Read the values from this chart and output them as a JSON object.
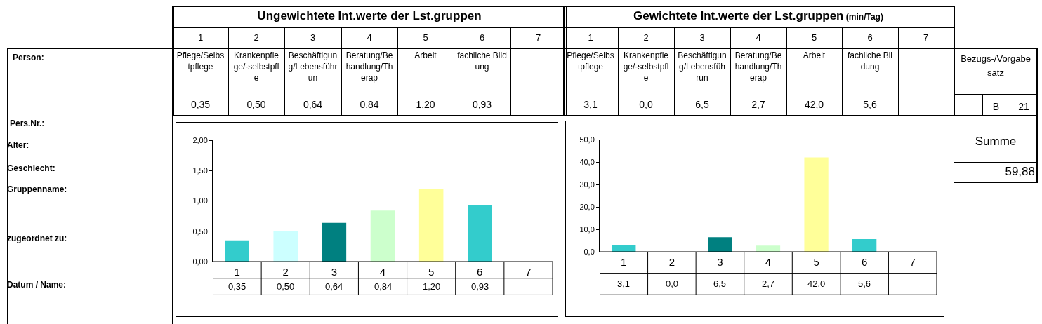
{
  "chart_data": [
    {
      "type": "bar",
      "title": "Ungewichtete Int.werte der Lst.gruppen",
      "categories": [
        "1",
        "2",
        "3",
        "4",
        "5",
        "6",
        "7"
      ],
      "values": [
        0.35,
        0.5,
        0.64,
        0.84,
        1.2,
        0.93,
        null
      ],
      "colors": [
        "#33cccc",
        "#ccffff",
        "#008080",
        "#ccffcc",
        "#ffff99",
        "#33cccc",
        "#ccffff"
      ],
      "value_labels": [
        "0,35",
        "0,50",
        "0,64",
        "0,84",
        "1,20",
        "0,93",
        null
      ],
      "annotations": [
        "Pflege/Selbstpflege",
        "Krankenpflege/-selbstpfle",
        "Beschäftigung/Lebensführun",
        "Beratung/Behandlung/Therap",
        "Arbeit",
        "fachliche Bildung"
      ],
      "ylim": [
        0,
        2.0
      ],
      "yticks": [
        {
          "value": 0,
          "label": "0,00"
        },
        {
          "value": 0.5,
          "label": "0,50"
        },
        {
          "value": 1,
          "label": "1,00"
        },
        {
          "value": 1.5,
          "label": "1,50"
        },
        {
          "value": 2,
          "label": "2,00"
        }
      ],
      "grid": false
    },
    {
      "type": "bar",
      "title": "Gewichtete Int.werte der Lst.gruppen",
      "subtitle": "(min/Tag)",
      "categories": [
        "1",
        "2",
        "3",
        "4",
        "5",
        "6",
        "7"
      ],
      "values": [
        3.1,
        0.0,
        6.5,
        2.7,
        42.0,
        5.6,
        null
      ],
      "colors": [
        "#33cccc",
        "#ccffff",
        "#008080",
        "#ccffcc",
        "#ffff99",
        "#33cccc",
        "#ccffff"
      ],
      "value_labels": [
        "3,1",
        "0,0",
        "6,5",
        "2,7",
        "42,0",
        "5,6",
        null
      ],
      "annotations": [
        "Pflege/Selbstpflege",
        "Krankenpflege/-selbstpfle",
        "Beschäftigung/Lebensführun",
        "Beratung/Behandlung/Therap",
        "Arbeit",
        "fachliche Bildung"
      ],
      "ylim": [
        0,
        50
      ],
      "yticks": [
        {
          "value": 0,
          "label": "0,0"
        },
        {
          "value": 10,
          "label": "10,0"
        },
        {
          "value": 20,
          "label": "20,0"
        },
        {
          "value": 30,
          "label": "30,0"
        },
        {
          "value": 40,
          "label": "40,0"
        },
        {
          "value": 50,
          "label": "50,0"
        }
      ],
      "grid": false
    },
    {
      "type": "other",
      "annotations": [
        "Person:",
        "Pers.Nr.:",
        "Alter:",
        "Geschlecht:",
        "Gruppenname:",
        "zugeordnet zu:",
        "Datum / Name:",
        "Bezugs-/Vorgabesatz",
        "B",
        "21",
        "Summe",
        "59,88"
      ]
    }
  ]
}
